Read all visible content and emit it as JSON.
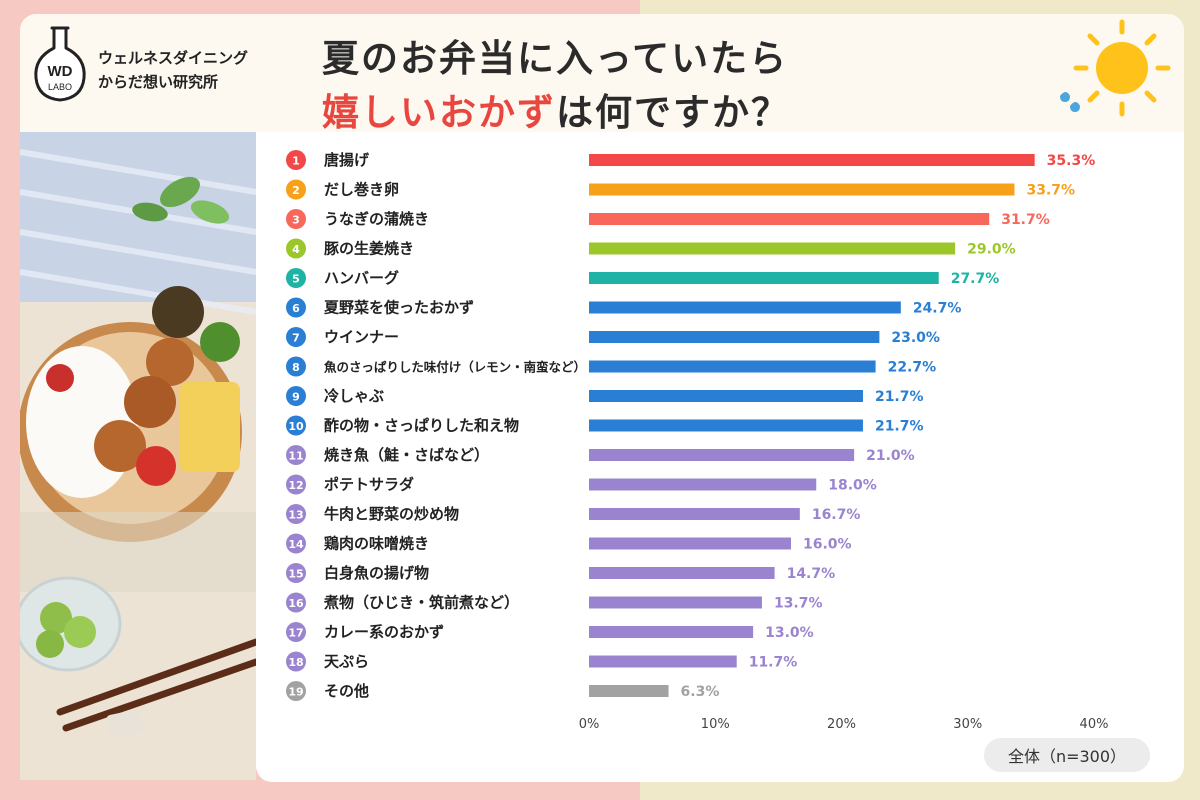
{
  "brand": {
    "logo_text_top": "WD",
    "logo_text_bottom": "LABO",
    "name_line1": "ウェルネスダイニング",
    "name_line2": "からだ想い研究所"
  },
  "title": {
    "line1": "夏のお弁当に入っていたら",
    "line2_highlight": "嬉しいおかず",
    "line2_rest": "は何ですか？"
  },
  "total_label": "全体（n=300）",
  "colors": {
    "red": "#f24848",
    "orange": "#f7a11a",
    "salmon": "#f7675a",
    "lime": "#9cc72a",
    "teal": "#1fb3a6",
    "blue": "#2a7fd4",
    "purple": "#9b84cf",
    "gray": "#a2a2a2"
  },
  "chart_data": {
    "type": "bar",
    "orientation": "horizontal",
    "categories": [
      "唐揚げ",
      "だし巻き卵",
      "うなぎの蒲焼き",
      "豚の生姜焼き",
      "ハンバーグ",
      "夏野菜を使ったおかず",
      "ウインナー",
      "魚のさっぱりした味付け（レモン・南蛮など）",
      "冷しゃぶ",
      "酢の物・さっぱりした和え物",
      "焼き魚（鮭・さばなど）",
      "ポテトサラダ",
      "牛肉と野菜の炒め物",
      "鶏肉の味噌焼き",
      "白身魚の揚げ物",
      "煮物（ひじき・筑前煮など）",
      "カレー系のおかず",
      "天ぷら",
      "その他"
    ],
    "values": [
      35.3,
      33.7,
      31.7,
      29.0,
      27.7,
      24.7,
      23.0,
      22.7,
      21.7,
      21.7,
      21.0,
      18.0,
      16.7,
      16.0,
      14.7,
      13.7,
      13.0,
      11.7,
      6.3
    ],
    "value_labels": [
      "35.3%",
      "33.7%",
      "31.7%",
      "29.0%",
      "27.7%",
      "24.7%",
      "23.0%",
      "22.7%",
      "21.7%",
      "21.7%",
      "21.0%",
      "18.0%",
      "16.7%",
      "16.0%",
      "14.7%",
      "13.7%",
      "13.0%",
      "11.7%",
      "6.3%"
    ],
    "ranks": [
      "1",
      "2",
      "3",
      "4",
      "5",
      "6",
      "7",
      "8",
      "9",
      "10",
      "11",
      "12",
      "13",
      "14",
      "15",
      "16",
      "17",
      "18",
      "19"
    ],
    "bar_colors": [
      "red",
      "orange",
      "salmon",
      "lime",
      "teal",
      "blue",
      "blue",
      "blue",
      "blue",
      "blue",
      "purple",
      "purple",
      "purple",
      "purple",
      "purple",
      "purple",
      "purple",
      "purple",
      "gray"
    ],
    "x_ticks": [
      "0%",
      "10%",
      "20%",
      "30%",
      "40%"
    ],
    "xlim": [
      0,
      40
    ],
    "grid": false
  }
}
